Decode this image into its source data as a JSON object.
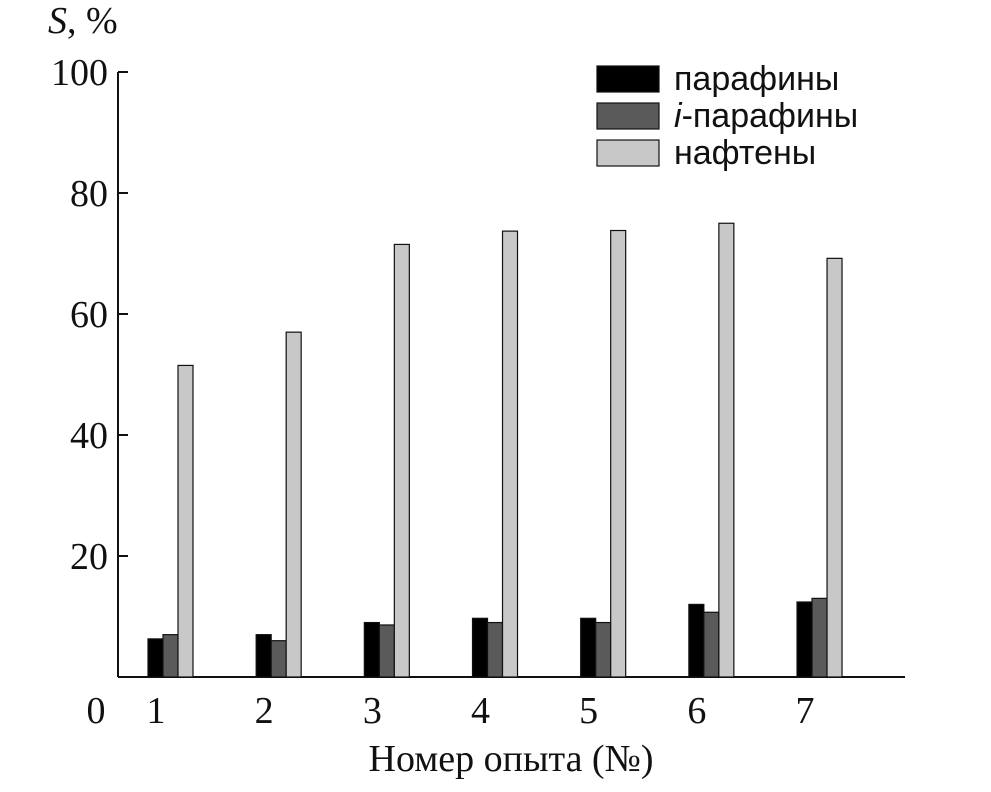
{
  "chart_data": {
    "type": "bar",
    "ylabel_italic": "S",
    "ylabel_rest": ", %",
    "xlabel": "Номер опыта (№)",
    "origin_label": "0",
    "ylim": [
      0,
      100
    ],
    "yticks": [
      20,
      40,
      60,
      80,
      100
    ],
    "categories": [
      "1",
      "2",
      "3",
      "4",
      "5",
      "6",
      "7"
    ],
    "series": [
      {
        "name": "парафины",
        "name_italic_prefix": "",
        "color": "#000000",
        "values": [
          6.3,
          7.0,
          9.0,
          9.7,
          9.7,
          12.0,
          12.4
        ]
      },
      {
        "name": "-парафины",
        "name_italic_prefix": "i",
        "color": "#5a5a5a",
        "values": [
          7.0,
          6.0,
          8.6,
          9.0,
          9.0,
          10.7,
          13.0
        ]
      },
      {
        "name": "нафтены",
        "name_italic_prefix": "",
        "color": "#c8c8c8",
        "values": [
          51.5,
          57.0,
          71.5,
          73.7,
          73.8,
          75.0,
          69.2
        ]
      }
    ],
    "legend_position": "top-right",
    "grid": false
  }
}
